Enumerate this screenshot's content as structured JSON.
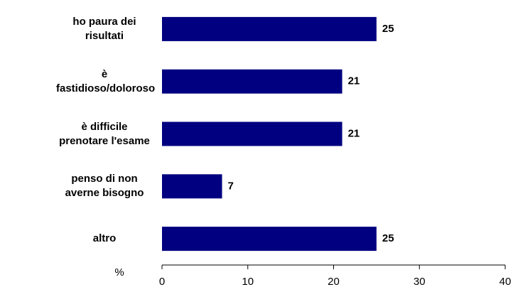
{
  "chart_data": {
    "type": "bar",
    "orientation": "horizontal",
    "categories": [
      "ho paura dei risultati",
      "è fastidioso/doloroso",
      "è difficile prenotare l'esame",
      "penso di non averne bisogno",
      "altro"
    ],
    "values": [
      25,
      21,
      21,
      7,
      25
    ],
    "color": "#000080",
    "xlabel": "%",
    "xlim": [
      0,
      40
    ],
    "xticks": [
      0,
      10,
      20,
      30,
      40
    ],
    "grid": false
  }
}
